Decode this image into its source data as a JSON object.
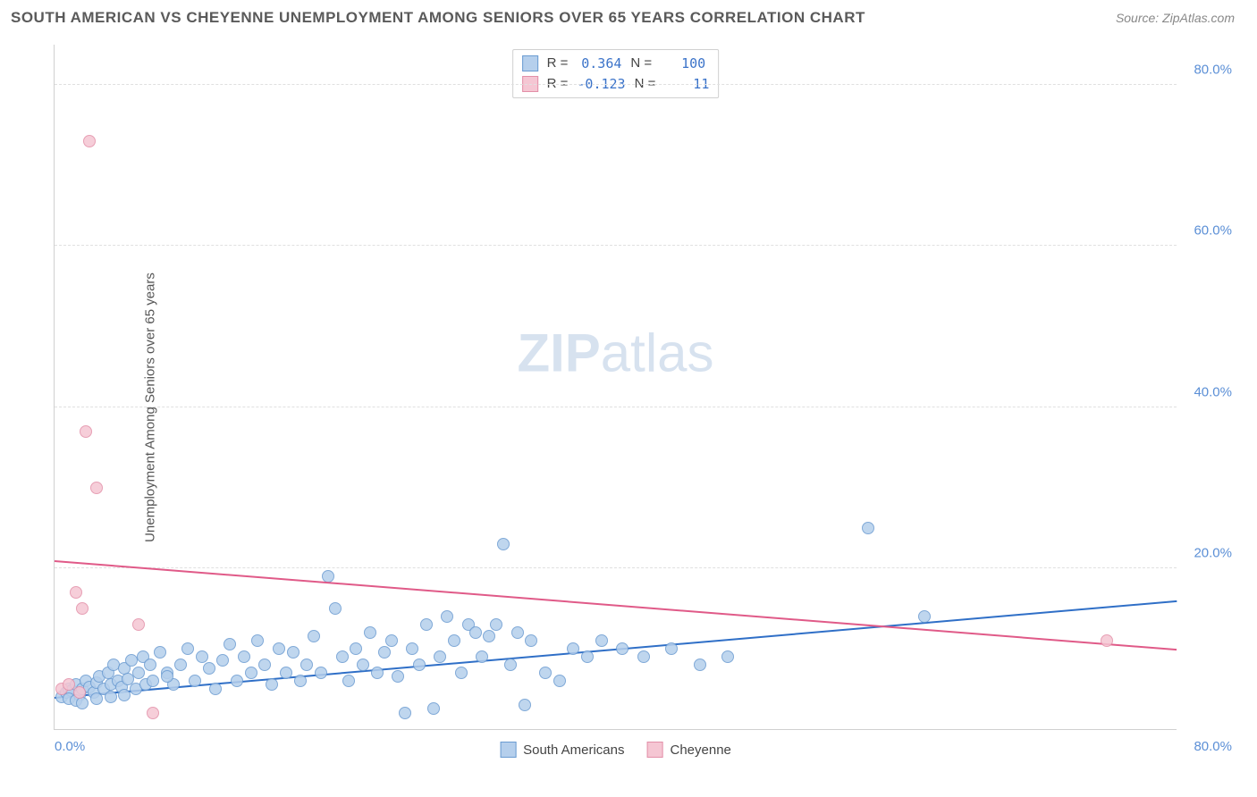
{
  "title": "SOUTH AMERICAN VS CHEYENNE UNEMPLOYMENT AMONG SENIORS OVER 65 YEARS CORRELATION CHART",
  "source": "Source: ZipAtlas.com",
  "ylabel": "Unemployment Among Seniors over 65 years",
  "watermark_bold": "ZIP",
  "watermark_rest": "atlas",
  "chart": {
    "type": "scatter",
    "xlim": [
      0,
      80
    ],
    "ylim": [
      0,
      85
    ],
    "xticks": [
      {
        "v": 0,
        "label": "0.0%"
      },
      {
        "v": 80,
        "label": "80.0%"
      }
    ],
    "yticks": [
      {
        "v": 20,
        "label": "20.0%"
      },
      {
        "v": 40,
        "label": "40.0%"
      },
      {
        "v": 60,
        "label": "60.0%"
      },
      {
        "v": 80,
        "label": "80.0%"
      }
    ],
    "grid_color": "#e0e0e0",
    "background": "#ffffff",
    "marker_radius": 7,
    "marker_border": 1,
    "series": [
      {
        "name": "South Americans",
        "fill": "#b5cfec",
        "stroke": "#6a9bd1",
        "trend_color": "#2f6fc7",
        "R": "0.364",
        "N": "100",
        "trend": {
          "x1": 0,
          "y1": 4,
          "x2": 80,
          "y2": 16
        },
        "points": [
          [
            0.5,
            4
          ],
          [
            0.8,
            4.5
          ],
          [
            1,
            5
          ],
          [
            1.2,
            4.8
          ],
          [
            1.5,
            5.5
          ],
          [
            1.8,
            4.2
          ],
          [
            2,
            5
          ],
          [
            2.2,
            6
          ],
          [
            2.5,
            5.2
          ],
          [
            2.8,
            4.5
          ],
          [
            3,
            5.8
          ],
          [
            3.2,
            6.5
          ],
          [
            3.5,
            5
          ],
          [
            3.8,
            7
          ],
          [
            4,
            5.5
          ],
          [
            4.2,
            8
          ],
          [
            4.5,
            6
          ],
          [
            4.8,
            5.2
          ],
          [
            5,
            7.5
          ],
          [
            5.2,
            6.2
          ],
          [
            5.5,
            8.5
          ],
          [
            5.8,
            5
          ],
          [
            6,
            7
          ],
          [
            6.3,
            9
          ],
          [
            6.5,
            5.5
          ],
          [
            6.8,
            8
          ],
          [
            7,
            6
          ],
          [
            7.5,
            9.5
          ],
          [
            8,
            7
          ],
          [
            8.5,
            5.5
          ],
          [
            9,
            8
          ],
          [
            9.5,
            10
          ],
          [
            10,
            6
          ],
          [
            10.5,
            9
          ],
          [
            11,
            7.5
          ],
          [
            11.5,
            5
          ],
          [
            12,
            8.5
          ],
          [
            12.5,
            10.5
          ],
          [
            13,
            6
          ],
          [
            13.5,
            9
          ],
          [
            14,
            7
          ],
          [
            14.5,
            11
          ],
          [
            15,
            8
          ],
          [
            15.5,
            5.5
          ],
          [
            16,
            10
          ],
          [
            16.5,
            7
          ],
          [
            17,
            9.5
          ],
          [
            17.5,
            6
          ],
          [
            18,
            8
          ],
          [
            18.5,
            11.5
          ],
          [
            19,
            7
          ],
          [
            19.5,
            19
          ],
          [
            20,
            15
          ],
          [
            20.5,
            9
          ],
          [
            21,
            6
          ],
          [
            21.5,
            10
          ],
          [
            22,
            8
          ],
          [
            22.5,
            12
          ],
          [
            23,
            7
          ],
          [
            23.5,
            9.5
          ],
          [
            24,
            11
          ],
          [
            24.5,
            6.5
          ],
          [
            25,
            2
          ],
          [
            25.5,
            10
          ],
          [
            26,
            8
          ],
          [
            26.5,
            13
          ],
          [
            27,
            2.5
          ],
          [
            27.5,
            9
          ],
          [
            28,
            14
          ],
          [
            28.5,
            11
          ],
          [
            29,
            7
          ],
          [
            29.5,
            13
          ],
          [
            30,
            12
          ],
          [
            30.5,
            9
          ],
          [
            31,
            11.5
          ],
          [
            31.5,
            13
          ],
          [
            32,
            23
          ],
          [
            32.5,
            8
          ],
          [
            33,
            12
          ],
          [
            33.5,
            3
          ],
          [
            34,
            11
          ],
          [
            35,
            7
          ],
          [
            36,
            6
          ],
          [
            37,
            10
          ],
          [
            38,
            9
          ],
          [
            39,
            11
          ],
          [
            40.5,
            10
          ],
          [
            42,
            9
          ],
          [
            44,
            10
          ],
          [
            46,
            8
          ],
          [
            48,
            9
          ],
          [
            58,
            25
          ],
          [
            62,
            14
          ],
          [
            1,
            3.8
          ],
          [
            1.5,
            3.5
          ],
          [
            2,
            3.2
          ],
          [
            3,
            3.8
          ],
          [
            4,
            4
          ],
          [
            5,
            4.2
          ],
          [
            8,
            6.5
          ]
        ]
      },
      {
        "name": "Cheyenne",
        "fill": "#f5c6d3",
        "stroke": "#e38fa8",
        "trend_color": "#e05a88",
        "R": "-0.123",
        "N": "11",
        "trend": {
          "x1": 0,
          "y1": 21,
          "x2": 80,
          "y2": 10
        },
        "points": [
          [
            0.5,
            5
          ],
          [
            1,
            5.5
          ],
          [
            1.5,
            17
          ],
          [
            2,
            15
          ],
          [
            2.2,
            37
          ],
          [
            2.5,
            73
          ],
          [
            3,
            30
          ],
          [
            6,
            13
          ],
          [
            7,
            2
          ],
          [
            75,
            11
          ],
          [
            1.8,
            4.5
          ]
        ]
      }
    ]
  },
  "legend_stats_labels": {
    "R": "R =",
    "N": "N ="
  }
}
